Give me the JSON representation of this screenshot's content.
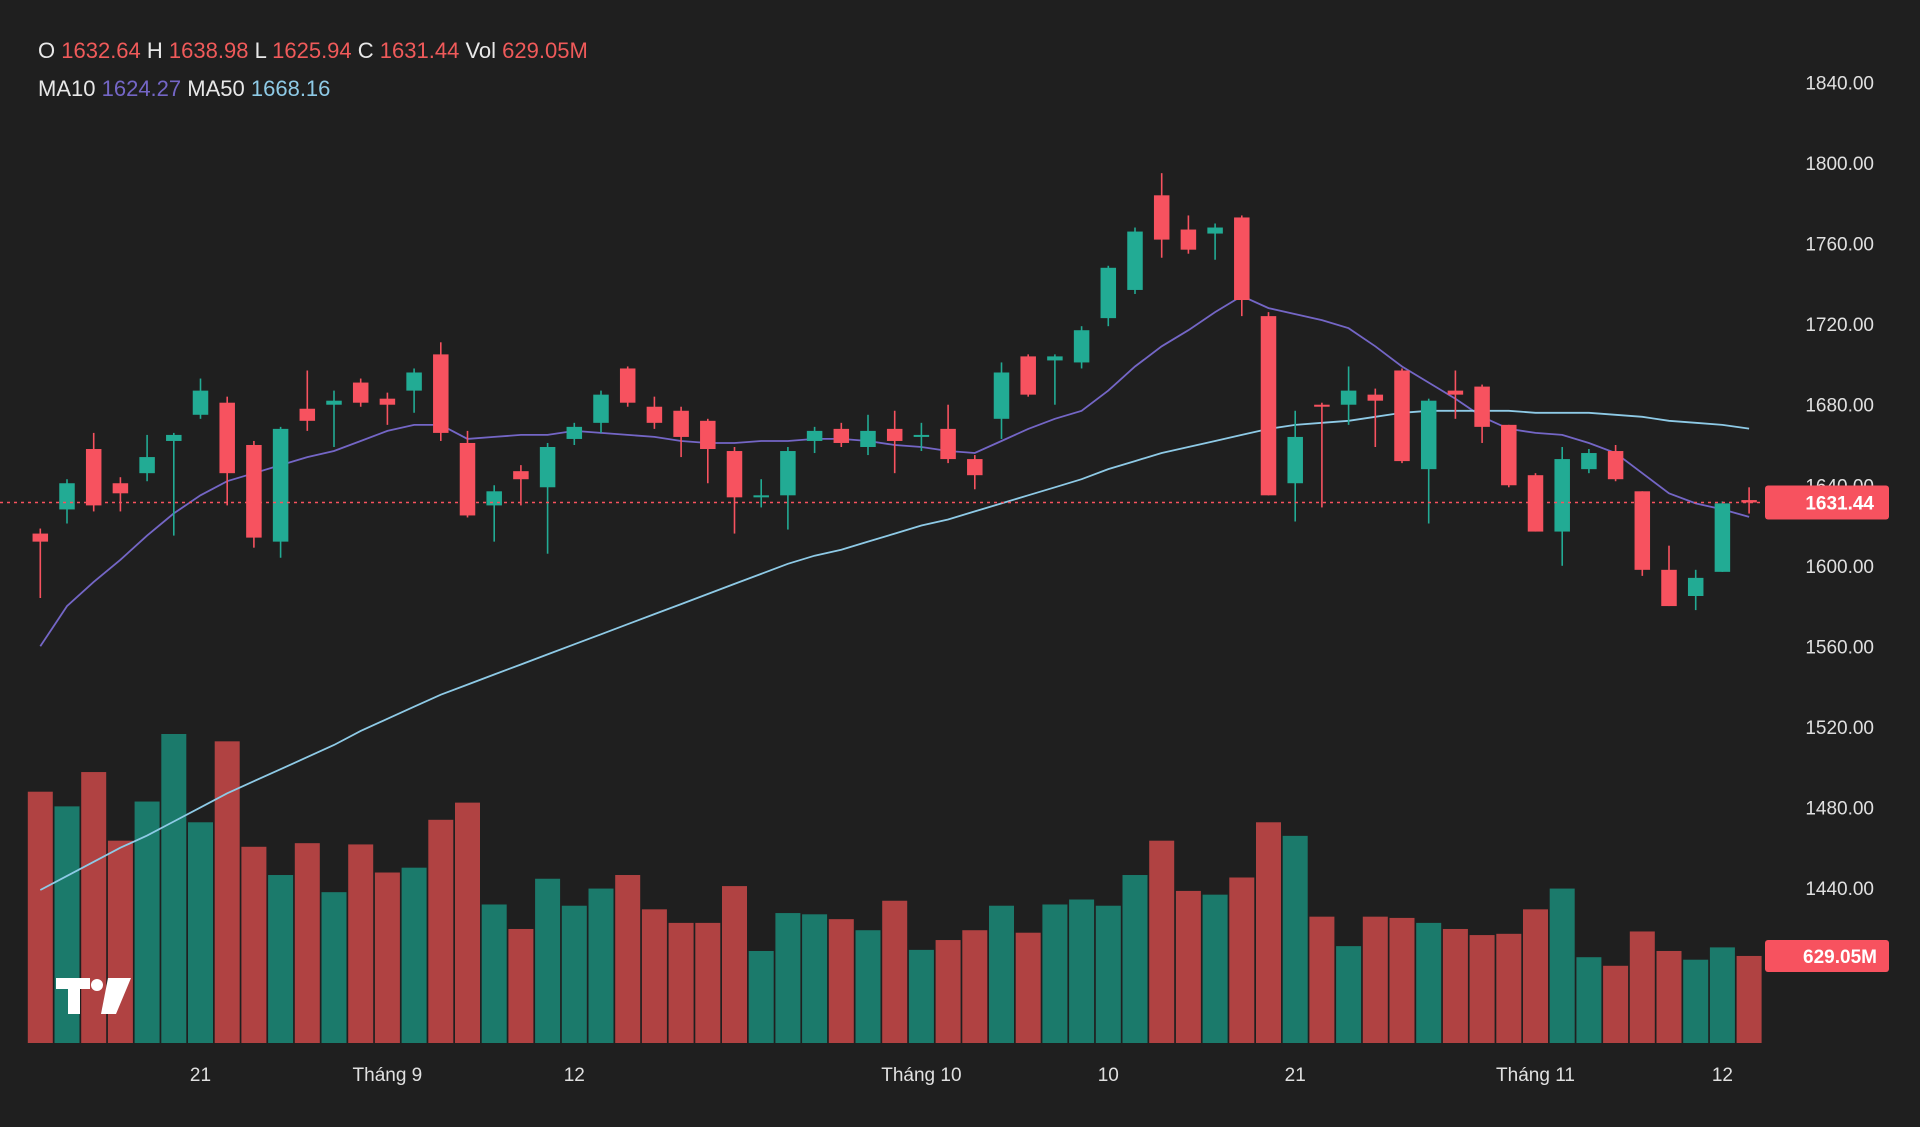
{
  "chart_data": {
    "type": "candlestick",
    "categories": [
      null,
      null,
      null,
      null,
      null,
      null,
      "21",
      null,
      null,
      null,
      null,
      null,
      null,
      "Tháng 9",
      null,
      null,
      null,
      null,
      null,
      null,
      "12",
      null,
      null,
      null,
      null,
      null,
      null,
      null,
      null,
      null,
      null,
      null,
      null,
      "Tháng 10",
      null,
      null,
      null,
      null,
      null,
      null,
      "10",
      null,
      null,
      null,
      null,
      null,
      null,
      "21",
      null,
      null,
      null,
      null,
      null,
      null,
      null,
      null,
      "Tháng 11",
      null,
      null,
      null,
      null,
      null,
      null,
      "12",
      null
    ],
    "open": [
      1616,
      1628,
      1658,
      1641,
      1646,
      1662,
      1675,
      1681,
      1660,
      1612,
      1678,
      1680,
      1691,
      1683,
      1687,
      1705,
      1661,
      1630,
      1647,
      1639,
      1663,
      1671,
      1698,
      1679,
      1677,
      1672,
      1657,
      1634,
      1635,
      1662,
      1668,
      1659,
      1668,
      1664,
      1668,
      1653,
      1673,
      1704,
      1702,
      1701,
      1723,
      1737,
      1784,
      1767,
      1765,
      1773,
      1724,
      1641,
      1680,
      1680,
      1685,
      1697,
      1648,
      1687,
      1689,
      1670,
      1645,
      1617,
      1648,
      1657,
      1637,
      1598,
      1585,
      1597,
      1632.64
    ],
    "high": [
      1618.5,
      1643,
      1666,
      1644,
      1665,
      1666,
      1693,
      1684,
      1662,
      1669,
      1697,
      1687,
      1693,
      1686,
      1698,
      1711,
      1667,
      1640,
      1650,
      1661,
      1671,
      1687,
      1699,
      1684,
      1679,
      1673,
      1659,
      1643,
      1659,
      1669,
      1671,
      1675,
      1677,
      1671,
      1680,
      1655,
      1701,
      1705,
      1705,
      1719,
      1749,
      1768,
      1795,
      1774,
      1770,
      1774,
      1726,
      1677,
      1681,
      1699,
      1688,
      1698,
      1683,
      1697,
      1690,
      1670,
      1646,
      1659,
      1658,
      1660,
      1637,
      1610,
      1598,
      1632,
      1638.98
    ],
    "low": [
      1584,
      1621,
      1627,
      1627,
      1642,
      1615,
      1673,
      1630,
      1609,
      1604,
      1667,
      1659,
      1679,
      1670,
      1676,
      1662,
      1624,
      1612,
      1630,
      1606,
      1660,
      1666,
      1679,
      1668,
      1654,
      1641,
      1616,
      1629,
      1618,
      1656,
      1659,
      1655,
      1646,
      1657,
      1651,
      1638,
      1663,
      1684,
      1680,
      1698,
      1719,
      1735,
      1753,
      1755,
      1752,
      1724,
      1635,
      1622,
      1629,
      1670,
      1659,
      1651,
      1621,
      1673,
      1661,
      1639,
      1617,
      1600,
      1646,
      1642,
      1595,
      1580,
      1578,
      1597,
      1625.94
    ],
    "close": [
      1612,
      1641,
      1630,
      1636,
      1654,
      1665,
      1687,
      1646,
      1614,
      1668,
      1672,
      1682,
      1681,
      1680,
      1696,
      1666,
      1625,
      1637,
      1643,
      1659,
      1669,
      1685,
      1681,
      1671,
      1664,
      1658,
      1634,
      1635,
      1657,
      1667,
      1661,
      1667,
      1662,
      1665,
      1653,
      1645,
      1696,
      1685,
      1704,
      1717,
      1748,
      1766,
      1762,
      1757,
      1768,
      1732,
      1635,
      1664,
      1679,
      1687,
      1682,
      1652,
      1682,
      1685,
      1669,
      1640,
      1617,
      1653,
      1656,
      1643,
      1598,
      1580,
      1594,
      1631,
      1631.44
    ],
    "ohlc_labels": {
      "open": "O",
      "high": "H",
      "low": "L",
      "close": "C"
    },
    "up_color": "#22ab94",
    "down_color": "#f7525f",
    "volume": {
      "name": "Vol",
      "up_color": "#1b7a6b",
      "down_color": "#b04242",
      "values": [
        1816,
        1710,
        1958,
        1462,
        1745,
        2233,
        1595,
        2180,
        1418,
        1214,
        1444,
        1090,
        1435,
        1232,
        1267,
        1613,
        1737,
        1001,
        824,
        1187,
        992,
        1116,
        1214,
        966,
        868,
        868,
        1134,
        665,
        939,
        930,
        895,
        815,
        1028,
        673,
        744,
        815,
        992,
        797,
        1001,
        1037,
        992,
        1214,
        1462,
        1099,
        1072,
        1196,
        1595,
        1497,
        913,
        700,
        913,
        904,
        868,
        824,
        780,
        789,
        966,
        1116,
        620,
        558,
        806,
        665,
        602,
        691,
        629.05
      ],
      "value_labels": [
        null,
        null,
        null,
        null,
        null,
        null,
        null,
        null,
        null,
        null,
        null,
        null,
        null,
        null,
        null,
        null,
        null,
        null,
        null,
        null,
        null,
        null,
        null,
        null,
        null,
        null,
        null,
        null,
        null,
        null,
        null,
        null,
        null,
        null,
        null,
        null,
        null,
        null,
        null,
        null,
        null,
        null,
        null,
        null,
        null,
        null,
        null,
        null,
        null,
        null,
        null,
        null,
        null,
        null,
        null,
        null,
        null,
        null,
        null,
        null,
        null,
        null,
        null,
        null,
        "629.05M"
      ]
    },
    "series": [
      {
        "name": "MA10",
        "color": "#7466c6",
        "values": [
          1560,
          1580,
          1592,
          1603,
          1615,
          1626,
          1635,
          1642,
          1646,
          1650,
          1654,
          1657,
          1662,
          1667,
          1670,
          1670,
          1663,
          1664,
          1665,
          1665,
          1667,
          1666,
          1665,
          1664,
          1662,
          1661,
          1661,
          1662,
          1662,
          1663,
          1663,
          1662,
          1660,
          1659,
          1657,
          1656,
          1662,
          1668,
          1673,
          1677,
          1687,
          1699,
          1709,
          1717,
          1726,
          1734,
          1728,
          1725,
          1722,
          1718,
          1709,
          1699,
          1691,
          1683,
          1674,
          1668,
          1666,
          1665,
          1661,
          1656,
          1646,
          1636,
          1631,
          1628,
          1624.27
        ]
      },
      {
        "name": "MA50",
        "color": "#8ecae6",
        "values": [
          1439,
          1446,
          1453,
          1460,
          1466,
          1473,
          1480,
          1487,
          1493,
          1499,
          1505,
          1511,
          1518,
          1524,
          1530,
          1536,
          1541,
          1546,
          1551,
          1556,
          1561,
          1566,
          1571,
          1576,
          1581,
          1586,
          1591,
          1596,
          1601,
          1605,
          1608,
          1612,
          1616,
          1620,
          1623,
          1627,
          1631,
          1635,
          1639,
          1643,
          1648,
          1652,
          1656,
          1659,
          1662,
          1665,
          1668,
          1670,
          1671,
          1672,
          1674,
          1676,
          1677,
          1677,
          1677,
          1677,
          1676,
          1676,
          1676,
          1675,
          1674,
          1672,
          1671,
          1670,
          1668.16
        ]
      }
    ],
    "ylim": [
      1363,
      1881
    ],
    "yticks": [
      {
        "value": 1440,
        "label": "1440.00"
      },
      {
        "value": 1480,
        "label": "1480.00"
      },
      {
        "value": 1520,
        "label": "1520.00"
      },
      {
        "value": 1560,
        "label": "1560.00"
      },
      {
        "value": 1600,
        "label": "1600.00"
      },
      {
        "value": 1640,
        "label": "1640.00"
      },
      {
        "value": 1680,
        "label": "1680.00"
      },
      {
        "value": 1720,
        "label": "1720.00"
      },
      {
        "value": 1760,
        "label": "1760.00"
      },
      {
        "value": 1800,
        "label": "1800.00"
      },
      {
        "value": 1840,
        "label": "1840.00"
      }
    ],
    "grid": false
  }
}
